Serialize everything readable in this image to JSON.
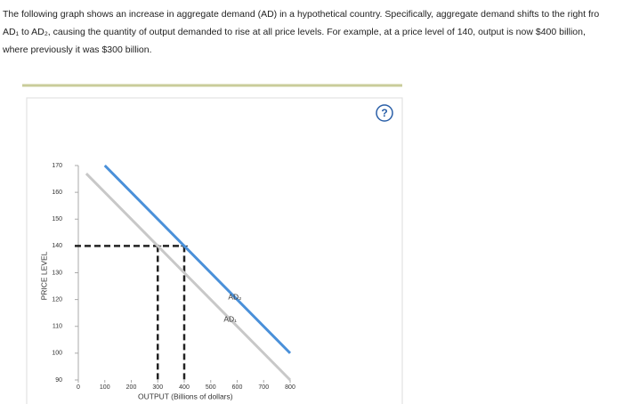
{
  "text": {
    "lines": [
      "The following graph shows an increase in aggregate demand (AD) in a hypothetical country. Specifically, aggregate demand shifts to the right fro",
      "AD₁ to AD₂, causing the quantity of output demanded to rise at all price levels. For example, at a price level of 140, output is now $400 billion,",
      "where previously it was $300 billion."
    ],
    "help": "?"
  },
  "chart_data": {
    "type": "line",
    "xlabel": "OUTPUT (Billions of dollars)",
    "ylabel": "PRICE LEVEL",
    "xlim": [
      0,
      800
    ],
    "xticks": [
      0,
      100,
      200,
      300,
      400,
      500,
      600,
      700,
      800
    ],
    "ylim": [
      90,
      170
    ],
    "yticks": [
      90,
      100,
      110,
      120,
      130,
      140,
      150,
      160,
      170
    ],
    "series": [
      {
        "name": "AD₁",
        "color": "#c8c8c8",
        "x": [
          30,
          800
        ],
        "values": [
          167,
          90
        ]
      },
      {
        "name": "AD₂",
        "color": "#4a90d9",
        "x": [
          100,
          800
        ],
        "values": [
          170,
          100
        ]
      }
    ],
    "guides": {
      "price": 140,
      "outputs": [
        300,
        400
      ]
    }
  }
}
